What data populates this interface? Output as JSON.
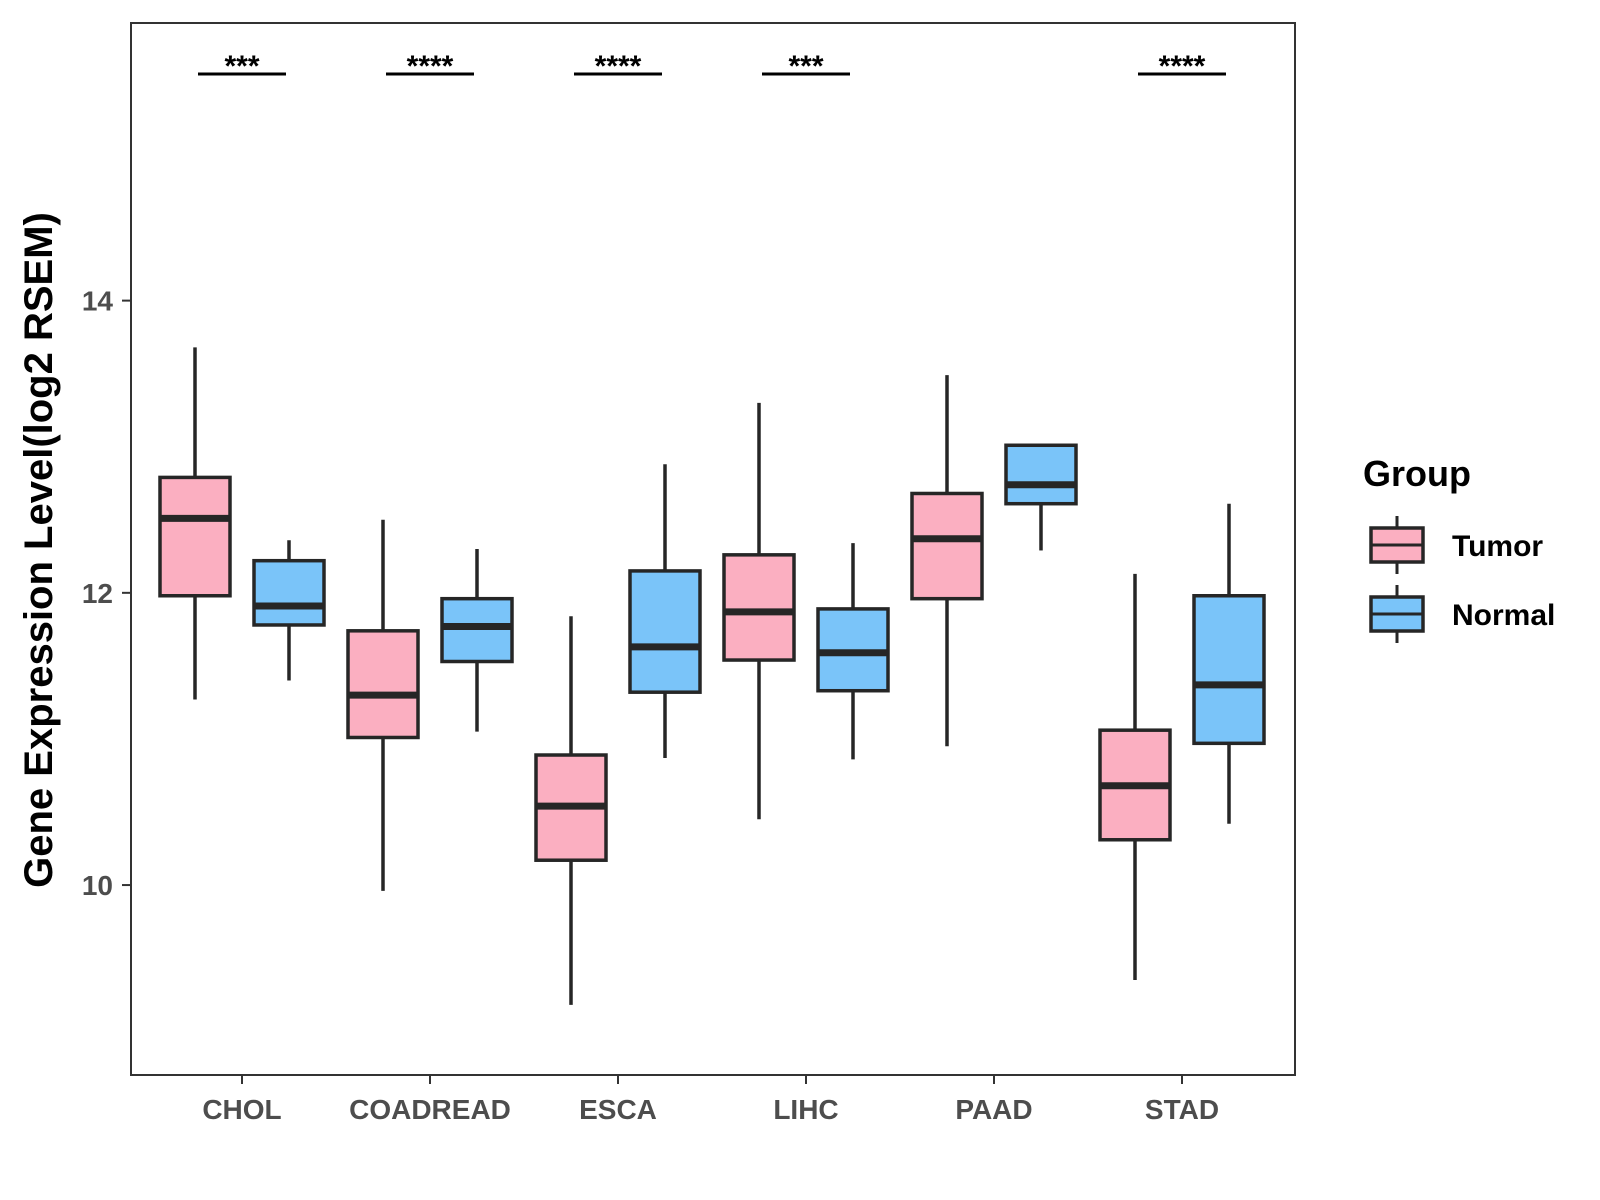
{
  "chart_data": {
    "type": "boxplot",
    "title": "",
    "xlabel": "",
    "ylabel": "Gene Expression Level(log2 RSEM)",
    "ylim": [
      8.7,
      15.9
    ],
    "yticks": [
      10,
      12,
      14
    ],
    "categories": [
      "CHOL",
      "COADREAD",
      "ESCA",
      "LIHC",
      "PAAD",
      "STAD"
    ],
    "legend": {
      "title": "Group",
      "position": "right"
    },
    "series": [
      {
        "name": "Tumor",
        "color": "#FBAFC1",
        "boxes": [
          {
            "whisker_low": 11.27,
            "q1": 11.98,
            "median": 12.51,
            "q3": 12.79,
            "whisker_high": 13.68
          },
          {
            "whisker_low": 9.96,
            "q1": 11.01,
            "median": 11.3,
            "q3": 11.74,
            "whisker_high": 12.5
          },
          {
            "whisker_low": 9.18,
            "q1": 10.17,
            "median": 10.54,
            "q3": 10.89,
            "whisker_high": 11.84
          },
          {
            "whisker_low": 10.45,
            "q1": 11.54,
            "median": 11.87,
            "q3": 12.26,
            "whisker_high": 13.3
          },
          {
            "whisker_low": 10.95,
            "q1": 11.96,
            "median": 12.37,
            "q3": 12.68,
            "whisker_high": 13.49
          },
          {
            "whisker_low": 9.35,
            "q1": 10.31,
            "median": 10.68,
            "q3": 11.06,
            "whisker_high": 12.13
          }
        ]
      },
      {
        "name": "Normal",
        "color": "#7AC4F9",
        "boxes": [
          {
            "whisker_low": 11.4,
            "q1": 11.78,
            "median": 11.91,
            "q3": 12.22,
            "whisker_high": 12.36
          },
          {
            "whisker_low": 11.05,
            "q1": 11.53,
            "median": 11.77,
            "q3": 11.96,
            "whisker_high": 12.3
          },
          {
            "whisker_low": 10.87,
            "q1": 11.32,
            "median": 11.63,
            "q3": 12.15,
            "whisker_high": 12.88
          },
          {
            "whisker_low": 10.86,
            "q1": 11.33,
            "median": 11.59,
            "q3": 11.89,
            "whisker_high": 12.34
          },
          {
            "whisker_low": 12.29,
            "q1": 12.61,
            "median": 12.74,
            "q3": 13.01,
            "whisker_high": 13.01
          },
          {
            "whisker_low": 10.42,
            "q1": 10.97,
            "median": 11.37,
            "q3": 11.98,
            "whisker_high": 12.61
          }
        ]
      }
    ],
    "significance": [
      "***",
      "****",
      "****",
      "***",
      "",
      "****"
    ]
  }
}
